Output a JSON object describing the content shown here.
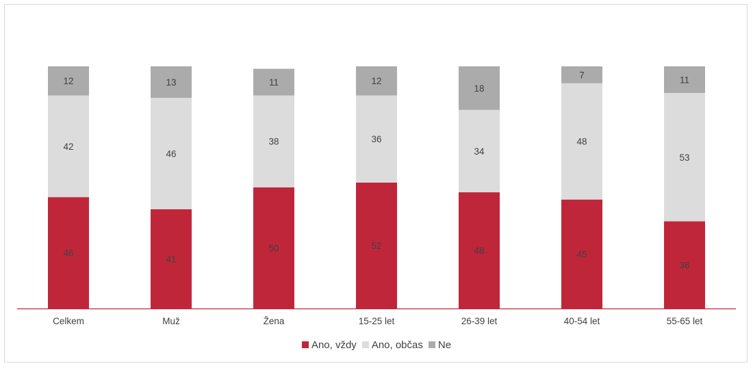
{
  "chart_data": {
    "type": "bar",
    "stacked": true,
    "title": "",
    "xlabel": "",
    "ylabel": "",
    "ylim": [
      0,
      100
    ],
    "grid": false,
    "legend_position": "bottom",
    "categories": [
      "Celkem",
      "Muž",
      "Žena",
      "15-25 let",
      "26-39 let",
      "40-54 let",
      "55-65 let"
    ],
    "series": [
      {
        "name": "Ano, vždy",
        "color": "#c0263a",
        "values": [
          46,
          41,
          50,
          52,
          48,
          45,
          36
        ]
      },
      {
        "name": "Ano, občas",
        "color": "#dcdcdc",
        "values": [
          42,
          46,
          38,
          36,
          34,
          48,
          53
        ]
      },
      {
        "name": "Ne",
        "color": "#ababab",
        "values": [
          12,
          13,
          11,
          12,
          18,
          7,
          11
        ]
      }
    ]
  }
}
